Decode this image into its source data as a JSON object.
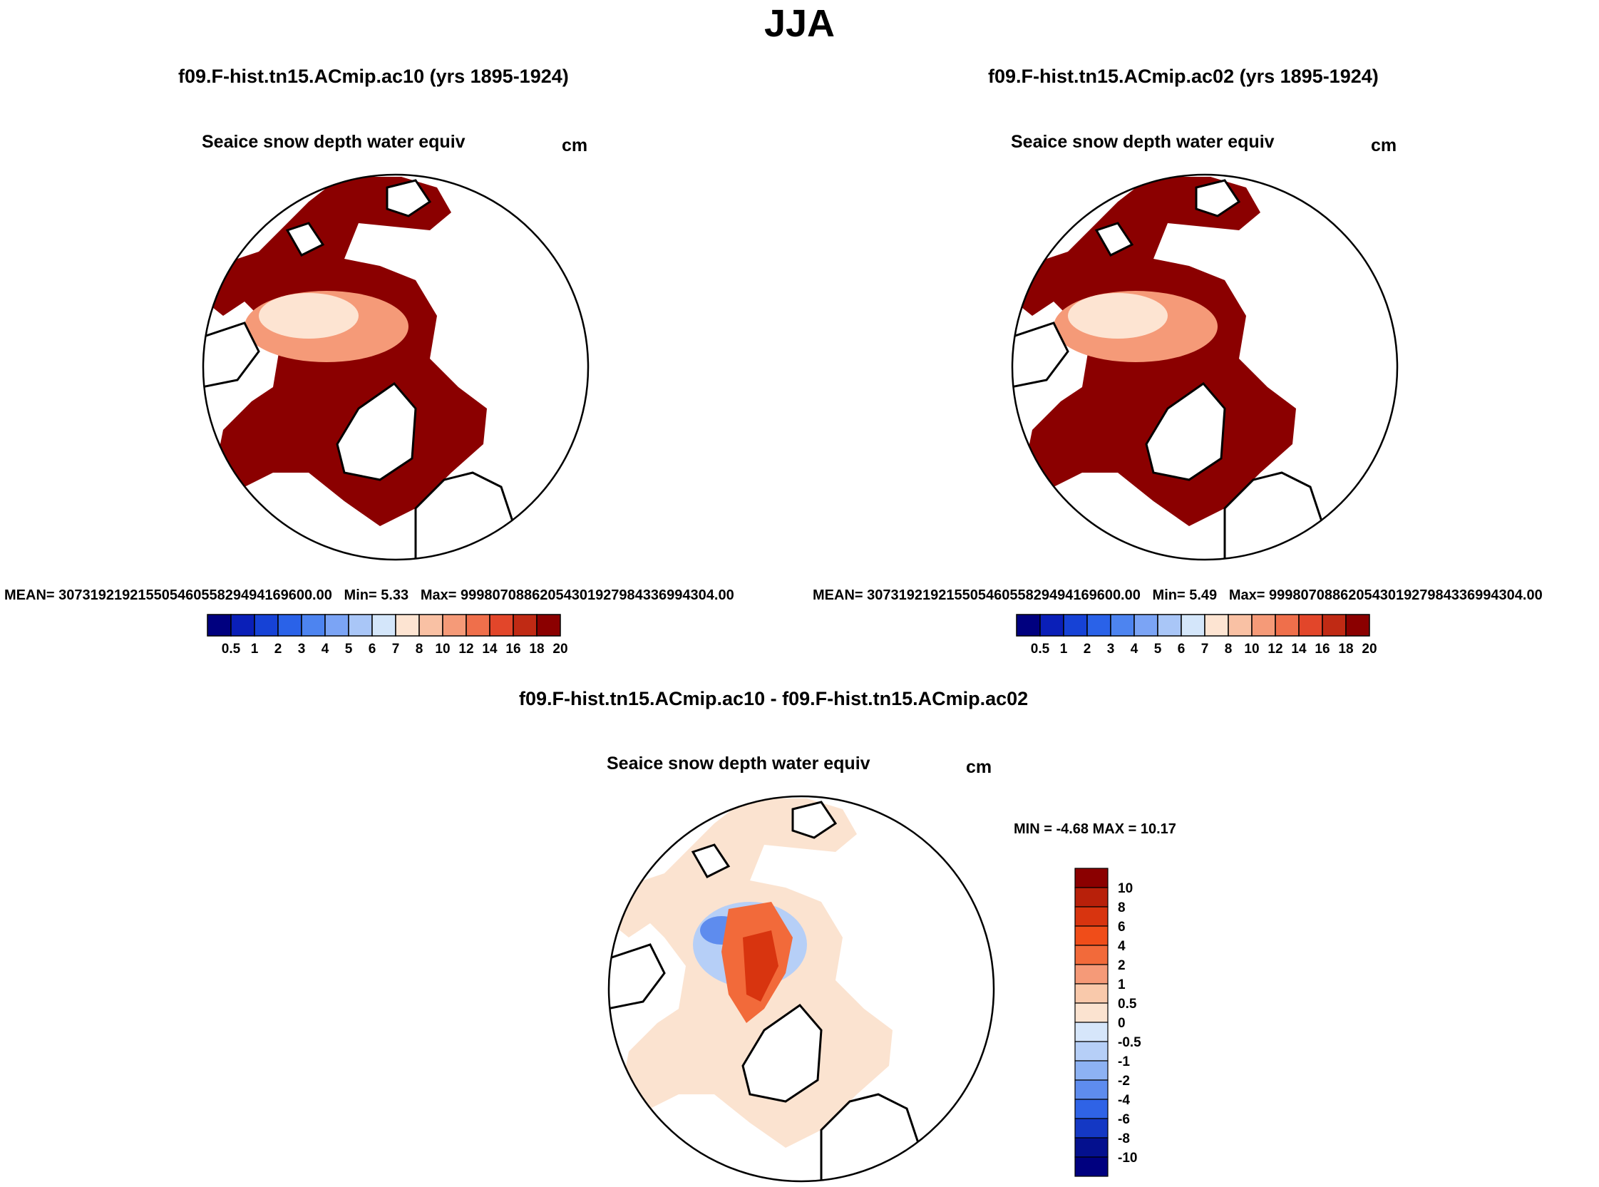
{
  "title": "JJA",
  "colors": {
    "ice": "#8b0000",
    "land": "#ffffff",
    "coast": "#000000",
    "diff_neutral": "#fbe0cc"
  },
  "panels": [
    {
      "case": "f09.F-hist.tn15.ACmip.ac10 (yrs 1895-1924)",
      "variable": "Seaice snow depth water equiv",
      "units": "cm",
      "mean": "MEAN= 30731921921550546055829494169600.00",
      "min": "Min=   5.33",
      "max": "Max= 99980708862054301927984336994304.00"
    },
    {
      "case": "f09.F-hist.tn15.ACmip.ac02 (yrs 1895-1924)",
      "variable": "Seaice snow depth water equiv",
      "units": "cm",
      "mean": "MEAN= 30731921921550546055829494169600.00",
      "min": "Min=   5.49",
      "max": "Max= 99980708862054301927984336994304.00"
    }
  ],
  "diff_panel": {
    "case": "f09.F-hist.tn15.ACmip.ac10 - f09.F-hist.tn15.ACmip.ac02",
    "variable": "Seaice snow depth water equiv",
    "units": "cm",
    "minmax": "MIN =  -4.68 MAX =  10.17"
  },
  "chart_data": [
    {
      "type": "heatmap",
      "projection": "north polar stereographic",
      "title": "f09.F-hist.tn15.ACmip.ac10 (yrs 1895-1924)",
      "variable": "Seaice snow depth water equiv",
      "units": "cm",
      "min": 5.33,
      "levels": [
        "0.5",
        "1",
        "2",
        "3",
        "4",
        "5",
        "6",
        "7",
        "8",
        "10",
        "12",
        "14",
        "16",
        "18",
        "20"
      ],
      "colors": [
        "#00007f",
        "#0a1fb8",
        "#1642d6",
        "#2a62e8",
        "#4d84f0",
        "#7ba4f5",
        "#a9c6f7",
        "#d4e6fa",
        "#fde4d2",
        "#f9c1a4",
        "#f59a78",
        "#ef6f4b",
        "#e2462a",
        "#c02a14",
        "#8b0000"
      ]
    },
    {
      "type": "heatmap",
      "projection": "north polar stereographic",
      "title": "f09.F-hist.tn15.ACmip.ac02 (yrs 1895-1924)",
      "variable": "Seaice snow depth water equiv",
      "units": "cm",
      "min": 5.49,
      "levels": [
        "0.5",
        "1",
        "2",
        "3",
        "4",
        "5",
        "6",
        "7",
        "8",
        "10",
        "12",
        "14",
        "16",
        "18",
        "20"
      ],
      "colors": [
        "#00007f",
        "#0a1fb8",
        "#1642d6",
        "#2a62e8",
        "#4d84f0",
        "#7ba4f5",
        "#a9c6f7",
        "#d4e6fa",
        "#fde4d2",
        "#f9c1a4",
        "#f59a78",
        "#ef6f4b",
        "#e2462a",
        "#c02a14",
        "#8b0000"
      ]
    },
    {
      "type": "heatmap",
      "projection": "north polar stereographic",
      "title": "f09.F-hist.tn15.ACmip.ac10 - f09.F-hist.tn15.ACmip.ac02",
      "variable": "Seaice snow depth water equiv",
      "units": "cm",
      "min": -4.68,
      "max": 10.17,
      "levels": [
        "10",
        "8",
        "6",
        "4",
        "2",
        "1",
        "0.5",
        "0",
        "-0.5",
        "-1",
        "-2",
        "-4",
        "-6",
        "-8",
        "-10"
      ],
      "colors": [
        "#8b0000",
        "#b8200a",
        "#d8340f",
        "#f04d19",
        "#f26a3a",
        "#f59a78",
        "#f9c9ab",
        "#fbe3d0",
        "#d6e6fa",
        "#b6cff7",
        "#8db2f3",
        "#5e8cee",
        "#2f63e6",
        "#1438c4",
        "#04108e",
        "#00007f"
      ]
    }
  ]
}
